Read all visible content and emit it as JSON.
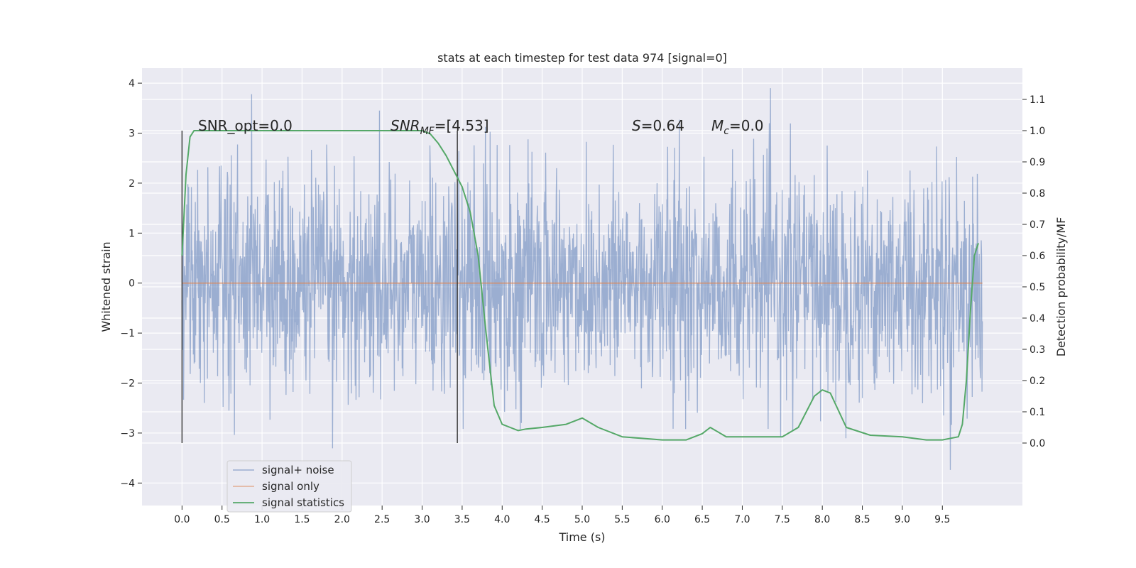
{
  "chart_data": {
    "type": "line",
    "title": "stats at each timestep for test data 974 [signal=0]",
    "xlabel": "Time (s)",
    "ylabel": "Whitened strain",
    "y2label": "Detection probability/MF",
    "xlim": [
      -0.5,
      10.5
    ],
    "ylim": [
      -4.45,
      4.3
    ],
    "y2lim": [
      -0.2,
      1.2
    ],
    "x_ticks": [
      "0.0",
      "0.5",
      "1.0",
      "1.5",
      "2.0",
      "2.5",
      "3.0",
      "3.5",
      "4.0",
      "4.5",
      "5.0",
      "5.5",
      "6.0",
      "6.5",
      "7.0",
      "7.5",
      "8.0",
      "8.5",
      "9.0",
      "9.5"
    ],
    "y_ticks": [
      "4",
      "3",
      "2",
      "1",
      "0",
      "−1",
      "−2",
      "−3",
      "−4"
    ],
    "y2_ticks": [
      "1.1",
      "1.0",
      "0.9",
      "0.8",
      "0.7",
      "0.6",
      "0.5",
      "0.4",
      "0.3",
      "0.2",
      "0.1",
      "0.0"
    ],
    "grid": true,
    "legend": "lower left",
    "annotations": {
      "snr_opt": "SNR_opt=0.0",
      "snr_mf_main": "SNR",
      "snr_mf_sub": "MF",
      "snr_mf_val": "=[4.53]",
      "s_main": "S",
      "s_val": "=0.64",
      "mc_main": "M",
      "mc_sub": "c",
      "mc_val": "=0.0"
    },
    "vlines": [
      0.0,
      3.44
    ],
    "series": [
      {
        "name": "signal+ noise",
        "color": "#4c72b0",
        "axis": "left",
        "x_range": [
          0.0,
          10.0
        ],
        "typical_abs_range": [
          -3.0,
          3.0
        ],
        "peak_max": 3.9,
        "peak_min": -4.05
      },
      {
        "name": "signal only",
        "color": "#dd8452",
        "axis": "left",
        "x": [
          0.0,
          10.0
        ],
        "y": [
          0.0,
          0.0
        ]
      },
      {
        "name": "signal statistics",
        "color": "#55a868",
        "axis": "right",
        "x": [
          0.0,
          0.05,
          0.1,
          0.15,
          0.2,
          0.3,
          0.5,
          1.0,
          2.0,
          3.0,
          3.1,
          3.2,
          3.3,
          3.4,
          3.5,
          3.6,
          3.7,
          3.8,
          3.9,
          4.0,
          4.1,
          4.2,
          4.3,
          4.5,
          4.8,
          5.0,
          5.2,
          5.5,
          6.0,
          6.3,
          6.5,
          6.6,
          6.8,
          7.0,
          7.3,
          7.5,
          7.7,
          7.9,
          8.0,
          8.1,
          8.3,
          8.6,
          9.0,
          9.3,
          9.5,
          9.7,
          9.75,
          9.8,
          9.85,
          9.9,
          9.95
        ],
        "y": [
          0.6,
          0.86,
          0.98,
          1.0,
          1.0,
          1.0,
          1.0,
          1.0,
          1.0,
          1.0,
          0.99,
          0.96,
          0.92,
          0.87,
          0.82,
          0.74,
          0.6,
          0.35,
          0.12,
          0.06,
          0.05,
          0.04,
          0.045,
          0.05,
          0.06,
          0.08,
          0.05,
          0.02,
          0.01,
          0.01,
          0.03,
          0.05,
          0.02,
          0.02,
          0.02,
          0.02,
          0.05,
          0.15,
          0.17,
          0.16,
          0.05,
          0.025,
          0.02,
          0.01,
          0.01,
          0.02,
          0.06,
          0.2,
          0.42,
          0.6,
          0.64
        ]
      }
    ]
  }
}
